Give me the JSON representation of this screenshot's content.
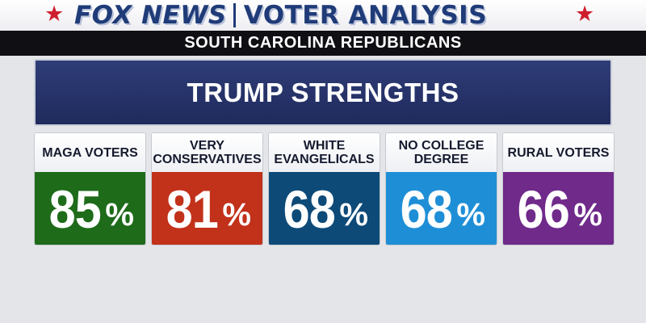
{
  "header": {
    "brand": "FOX NEWS",
    "title": "VOTER ANALYSIS",
    "subtitle": "SOUTH CAROLINA REPUBLICANS",
    "star_icon": "★",
    "star_color": "#cf1f2e",
    "brand_color": "#1f3b78"
  },
  "panel": {
    "title": "TRUMP STRENGTHS",
    "color": "#2a3670"
  },
  "cards": [
    {
      "label": "MAGA VOTERS",
      "value": "85",
      "unit": "%",
      "color": "#1e6b1a"
    },
    {
      "label": "VERY CONSERVATIVES",
      "value": "81",
      "unit": "%",
      "color": "#c2311a"
    },
    {
      "label": "WHITE EVANGELICALS",
      "value": "68",
      "unit": "%",
      "color": "#0d4a78"
    },
    {
      "label": "NO COLLEGE DEGREE",
      "value": "68",
      "unit": "%",
      "color": "#1e8fd6"
    },
    {
      "label": "RURAL VOTERS",
      "value": "66",
      "unit": "%",
      "color": "#6f2a8a"
    }
  ]
}
